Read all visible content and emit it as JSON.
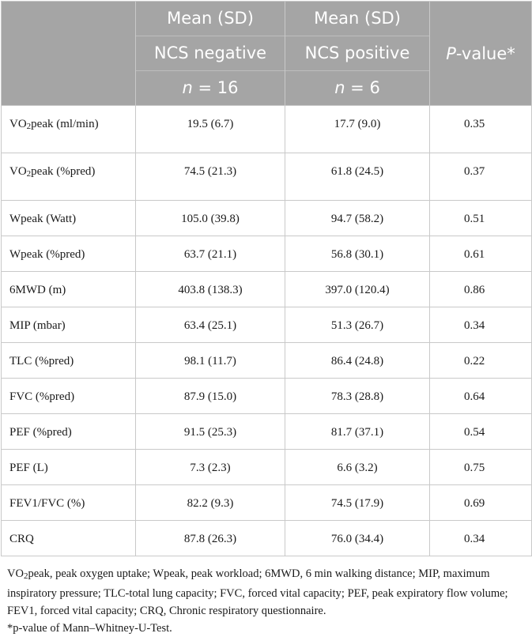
{
  "header": {
    "col2": {
      "line1": "Mean (SD)",
      "line2": "NCS negative",
      "n_prefix": "n",
      "n_value": " = 16"
    },
    "col3": {
      "line1": "Mean (SD)",
      "line2": "NCS positive",
      "n_prefix": "n",
      "n_value": " = 6"
    },
    "col4": {
      "p_letter": "P",
      "p_rest": "-value*"
    }
  },
  "rows": [
    {
      "label_pre": "VO",
      "label_sub": "2",
      "label_post": "peak (ml/min)",
      "neg": "19.5 (6.7)",
      "pos": "17.7 (9.0)",
      "p": "0.35"
    },
    {
      "label_pre": "VO",
      "label_sub": "2",
      "label_post": "peak (%pred)",
      "neg": "74.5 (21.3)",
      "pos": "61.8 (24.5)",
      "p": "0.37"
    },
    {
      "label": "Wpeak (Watt)",
      "neg": "105.0 (39.8)",
      "pos": "94.7 (58.2)",
      "p": "0.51"
    },
    {
      "label": "Wpeak (%pred)",
      "neg": "63.7 (21.1)",
      "pos": "56.8 (30.1)",
      "p": "0.61"
    },
    {
      "label": "6MWD (m)",
      "neg": "403.8 (138.3)",
      "pos": "397.0 (120.4)",
      "p": "0.86"
    },
    {
      "label": "MIP (mbar)",
      "neg": "63.4 (25.1)",
      "pos": "51.3 (26.7)",
      "p": "0.34"
    },
    {
      "label": "TLC (%pred)",
      "neg": "98.1 (11.7)",
      "pos": "86.4 (24.8)",
      "p": "0.22"
    },
    {
      "label": "FVC (%pred)",
      "neg": "87.9 (15.0)",
      "pos": "78.3 (28.8)",
      "p": "0.64"
    },
    {
      "label": "PEF (%pred)",
      "neg": "91.5 (25.3)",
      "pos": "81.7 (37.1)",
      "p": "0.54"
    },
    {
      "label": "PEF (L)",
      "neg": "7.3 (2.3)",
      "pos": "6.6 (3.2)",
      "p": "0.75"
    },
    {
      "label": "FEV1/FVC (%)",
      "neg": "82.2 (9.3)",
      "pos": "74.5 (17.9)",
      "p": "0.69"
    },
    {
      "label": "CRQ",
      "neg": "87.8 (26.3)",
      "pos": "76.0 (34.4)",
      "p": "0.34"
    }
  ],
  "footnote": {
    "abbr_pre": "VO",
    "abbr_sub": "2",
    "abbr_text": "peak, peak oxygen uptake; Wpeak, peak workload; 6MWD, 6 min walking distance; MIP, maximum inspiratory pressure; TLC-total lung capacity; FVC, forced vital capacity; PEF, peak expiratory flow volume; FEV1, forced vital capacity; CRQ, Chronic respiratory questionnaire.",
    "pnote": "*p-value of Mann–Whitney-U-Test."
  }
}
